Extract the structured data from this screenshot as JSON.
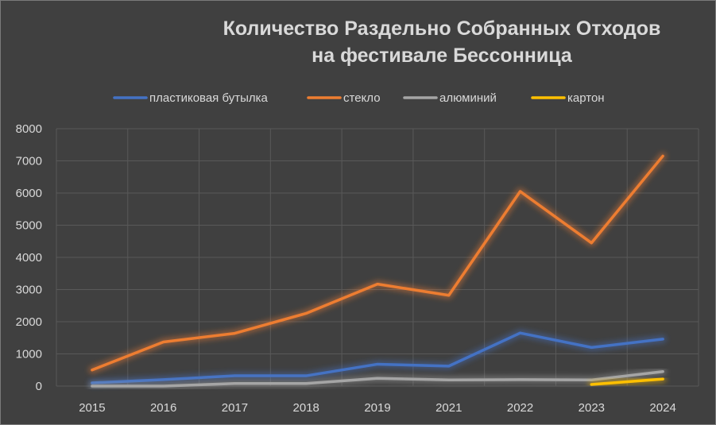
{
  "chart_data": {
    "type": "line",
    "title_line1": "Количество Раздельно Собранных Отходов",
    "title_line2": "на фестивале Бессонница",
    "categories": [
      "2015",
      "2016",
      "2017",
      "2018",
      "2019",
      "2021",
      "2022",
      "2023",
      "2024"
    ],
    "ylim": [
      0,
      8000
    ],
    "yticks": [
      0,
      1000,
      2000,
      3000,
      4000,
      5000,
      6000,
      7000,
      8000
    ],
    "grid": true,
    "legend_position": "top",
    "series": [
      {
        "name": "пластиковая бутылка",
        "color": "#4472c4",
        "values": [
          100,
          200,
          320,
          320,
          680,
          620,
          1650,
          1200,
          1460
        ]
      },
      {
        "name": "стекло",
        "color": "#ed7d31",
        "values": [
          500,
          1370,
          1640,
          2260,
          3170,
          2820,
          6050,
          4450,
          7150
        ]
      },
      {
        "name": "алюминий",
        "color": "#a5a5a5",
        "values": [
          0,
          0,
          80,
          80,
          240,
          190,
          200,
          190,
          450
        ]
      },
      {
        "name": "картон",
        "color": "#ffc000",
        "values": [
          null,
          null,
          null,
          null,
          null,
          null,
          null,
          50,
          220
        ]
      }
    ]
  }
}
